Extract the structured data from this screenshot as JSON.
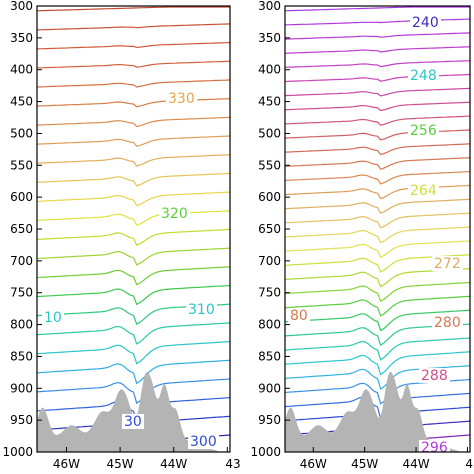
{
  "chart_data": [
    {
      "type": "contour",
      "y_axis": {
        "label": "",
        "ticks": [
          "300",
          "350",
          "400",
          "450",
          "500",
          "550",
          "600",
          "650",
          "700",
          "750",
          "800",
          "850",
          "900",
          "950",
          "1000"
        ],
        "range": [
          300,
          1000
        ]
      },
      "x_axis": {
        "label": "",
        "ticks": [
          "46W",
          "45W",
          "44W",
          "43"
        ],
        "range": [
          46.55,
          42.95
        ]
      },
      "levels": [
        294,
        296,
        298,
        300,
        302,
        304,
        306,
        308,
        310,
        312,
        314,
        316,
        318,
        320,
        322,
        324,
        326,
        328,
        330,
        332,
        334,
        336,
        338,
        340
      ],
      "level_colors": [
        "#2e1a9a",
        "#2839c9",
        "#2f62e0",
        "#3a8ce6",
        "#30aee0",
        "#2bc4c8",
        "#2bc9a3",
        "#2bc97a",
        "#3cc94c",
        "#6fcf30",
        "#9ad432",
        "#c2dc2e",
        "#dfe23a",
        "#e8d44a",
        "#e7c255",
        "#e3ae58",
        "#df9c55",
        "#db8c4c",
        "#d77d45",
        "#d66f3e",
        "#d3643a",
        "#ce5b38",
        "#c85236",
        "#c04a35"
      ],
      "labeled_contours": [
        {
          "text": "330",
          "color": "#e3a84a"
        },
        {
          "text": "320",
          "color": "#5ccf3a"
        },
        {
          "text": "310",
          "color": "#2bc4c8"
        },
        {
          "text": "10",
          "color": "#2bc4c8"
        },
        {
          "text": "300",
          "color": "#2f4ad8"
        },
        {
          "text": "30",
          "color": "#2f4ad8"
        }
      ],
      "terrain_color": "#b4b4b4"
    },
    {
      "type": "contour",
      "y_axis": {
        "label": "",
        "ticks": [
          "300",
          "350",
          "400",
          "450",
          "500",
          "550",
          "600",
          "650",
          "700",
          "750",
          "800",
          "850",
          "900",
          "950",
          "1000"
        ],
        "range": [
          300,
          1000
        ]
      },
      "x_axis": {
        "label": "",
        "ticks": [
          "46W",
          "45W",
          "44W",
          "43"
        ],
        "range": [
          46.55,
          42.95
        ]
      },
      "levels": [
        236,
        238,
        240,
        242,
        244,
        246,
        248,
        250,
        252,
        254,
        256,
        258,
        260,
        262,
        264,
        266,
        268,
        270,
        272,
        274,
        276,
        278,
        280,
        282,
        284,
        286,
        288,
        290,
        292,
        294,
        296,
        298
      ],
      "level_colors": [
        "#7a1fb0",
        "#3a2bbf",
        "#2e4ad6",
        "#2f6ee0",
        "#3a92e6",
        "#33b2e2",
        "#2dc6cf",
        "#2bcab0",
        "#2bc98c",
        "#35c965",
        "#58cd3d",
        "#84d233",
        "#aed834",
        "#d0de38",
        "#e3e052",
        "#e6d35a",
        "#e4c160",
        "#e0ad5c",
        "#dd9a57",
        "#d98852",
        "#d57750",
        "#d26a55",
        "#d05f62",
        "#cf5676",
        "#cd4e8c",
        "#cb48a2",
        "#c843b5",
        "#c33fc4",
        "#be3ccf",
        "#b83ad7",
        "#b139dc",
        "#a938df"
      ],
      "labeled_contours": [
        {
          "text": "240",
          "color": "#3a2bbf"
        },
        {
          "text": "248",
          "color": "#2dc6cf"
        },
        {
          "text": "256",
          "color": "#58cd3d"
        },
        {
          "text": "264",
          "color": "#d0de38"
        },
        {
          "text": "272",
          "color": "#e0ad5c"
        },
        {
          "text": "280",
          "color": "#d57750"
        },
        {
          "text": "80",
          "color": "#d57750"
        },
        {
          "text": "288",
          "color": "#cd4e8c"
        },
        {
          "text": "296",
          "color": "#b139dc"
        }
      ],
      "terrain_color": "#b4b4b4"
    }
  ]
}
